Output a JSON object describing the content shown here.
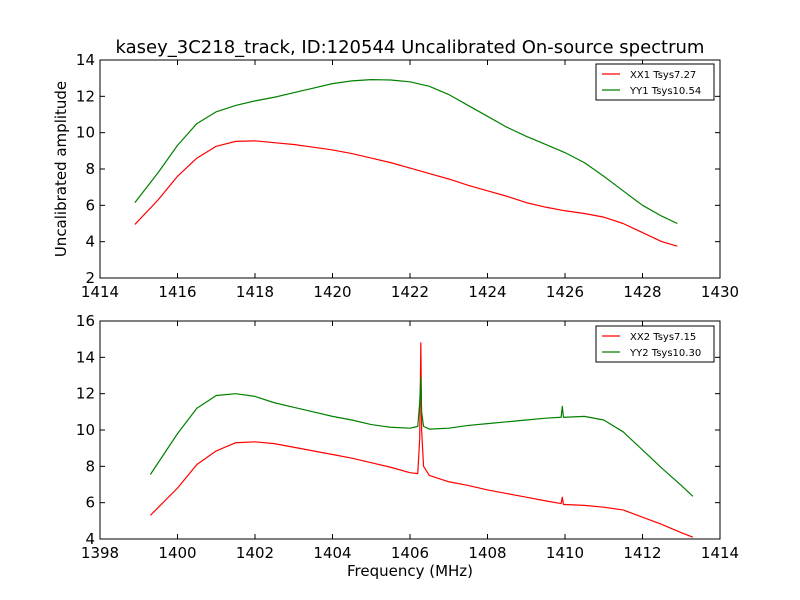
{
  "figure": {
    "title": "kasey_3C218_track, ID:120544 Uncalibrated On-source spectrum"
  },
  "chart_data": [
    {
      "type": "line",
      "title": "kasey_3C218_track, ID:120544 Uncalibrated On-source spectrum",
      "xlabel": "",
      "ylabel": "Uncalibrated amplitude",
      "xlim": [
        1414,
        1430
      ],
      "ylim": [
        2,
        14
      ],
      "xticks": [
        1414,
        1416,
        1418,
        1420,
        1422,
        1424,
        1426,
        1428,
        1430
      ],
      "yticks": [
        2,
        4,
        6,
        8,
        10,
        12,
        14
      ],
      "grid": false,
      "legend_position": "top-right",
      "series": [
        {
          "name": "XX1 Tsys7.27",
          "color": "#ff0000",
          "x": [
            1414.9,
            1415.5,
            1416.0,
            1416.5,
            1417.0,
            1417.5,
            1418.0,
            1418.5,
            1419.0,
            1419.5,
            1420.0,
            1420.5,
            1421.0,
            1421.5,
            1422.0,
            1422.5,
            1423.0,
            1423.5,
            1424.0,
            1424.5,
            1425.0,
            1425.5,
            1426.0,
            1426.5,
            1427.0,
            1427.5,
            1428.0,
            1428.5,
            1428.9
          ],
          "y": [
            4.95,
            6.3,
            7.6,
            8.6,
            9.25,
            9.52,
            9.55,
            9.45,
            9.35,
            9.2,
            9.05,
            8.85,
            8.6,
            8.35,
            8.05,
            7.75,
            7.45,
            7.1,
            6.8,
            6.5,
            6.15,
            5.9,
            5.7,
            5.55,
            5.35,
            5.0,
            4.5,
            4.0,
            3.75
          ]
        },
        {
          "name": "YY1 Tsys10.54",
          "color": "#008000",
          "x": [
            1414.9,
            1415.5,
            1416.0,
            1416.5,
            1417.0,
            1417.5,
            1418.0,
            1418.5,
            1419.0,
            1419.5,
            1420.0,
            1420.5,
            1421.0,
            1421.5,
            1422.0,
            1422.5,
            1423.0,
            1423.5,
            1424.0,
            1424.5,
            1425.0,
            1425.5,
            1426.0,
            1426.5,
            1427.0,
            1427.5,
            1428.0,
            1428.5,
            1428.9
          ],
          "y": [
            6.15,
            7.8,
            9.3,
            10.5,
            11.15,
            11.5,
            11.75,
            11.95,
            12.2,
            12.45,
            12.7,
            12.85,
            12.92,
            12.9,
            12.8,
            12.55,
            12.1,
            11.5,
            10.9,
            10.3,
            9.8,
            9.35,
            8.9,
            8.35,
            7.6,
            6.8,
            6.0,
            5.4,
            5.0
          ]
        }
      ]
    },
    {
      "type": "line",
      "title": "",
      "xlabel": "Frequency (MHz)",
      "ylabel": "",
      "xlim": [
        1398,
        1414
      ],
      "ylim": [
        4,
        16
      ],
      "xticks": [
        1398,
        1400,
        1402,
        1404,
        1406,
        1408,
        1410,
        1412,
        1414
      ],
      "yticks": [
        4,
        6,
        8,
        10,
        12,
        14,
        16
      ],
      "grid": false,
      "legend_position": "top-right",
      "series": [
        {
          "name": "XX2 Tsys7.15",
          "color": "#ff0000",
          "x": [
            1399.3,
            1400.0,
            1400.5,
            1401.0,
            1401.5,
            1402.0,
            1402.5,
            1403.0,
            1403.5,
            1404.0,
            1404.5,
            1405.0,
            1405.5,
            1406.0,
            1406.2,
            1406.25,
            1406.28,
            1406.3,
            1406.35,
            1406.5,
            1407.0,
            1407.5,
            1408.0,
            1408.5,
            1409.0,
            1409.5,
            1409.9,
            1409.93,
            1409.96,
            1410.0,
            1410.5,
            1411.0,
            1411.5,
            1412.0,
            1412.5,
            1413.0,
            1413.3
          ],
          "y": [
            5.3,
            6.8,
            8.1,
            8.85,
            9.3,
            9.35,
            9.25,
            9.05,
            8.85,
            8.65,
            8.45,
            8.2,
            7.95,
            7.65,
            7.6,
            9.5,
            14.8,
            10.0,
            8.0,
            7.5,
            7.15,
            6.95,
            6.7,
            6.5,
            6.3,
            6.1,
            5.95,
            6.3,
            5.9,
            5.9,
            5.85,
            5.75,
            5.6,
            5.2,
            4.8,
            4.35,
            4.1
          ]
        },
        {
          "name": "YY2 Tsys10.30",
          "color": "#008000",
          "x": [
            1399.3,
            1400.0,
            1400.5,
            1401.0,
            1401.5,
            1402.0,
            1402.5,
            1403.0,
            1403.5,
            1404.0,
            1404.5,
            1405.0,
            1405.5,
            1406.0,
            1406.2,
            1406.25,
            1406.28,
            1406.3,
            1406.35,
            1406.5,
            1407.0,
            1407.5,
            1408.0,
            1408.5,
            1409.0,
            1409.5,
            1409.9,
            1409.93,
            1409.96,
            1410.0,
            1410.5,
            1411.0,
            1411.5,
            1412.0,
            1412.5,
            1413.0,
            1413.3
          ],
          "y": [
            7.55,
            9.8,
            11.2,
            11.9,
            12.0,
            11.85,
            11.5,
            11.25,
            11.0,
            10.75,
            10.55,
            10.3,
            10.15,
            10.1,
            10.2,
            11.5,
            12.9,
            11.0,
            10.2,
            10.05,
            10.1,
            10.25,
            10.35,
            10.45,
            10.55,
            10.65,
            10.7,
            11.3,
            10.7,
            10.7,
            10.75,
            10.55,
            9.9,
            8.9,
            7.9,
            6.95,
            6.35
          ]
        }
      ]
    }
  ]
}
